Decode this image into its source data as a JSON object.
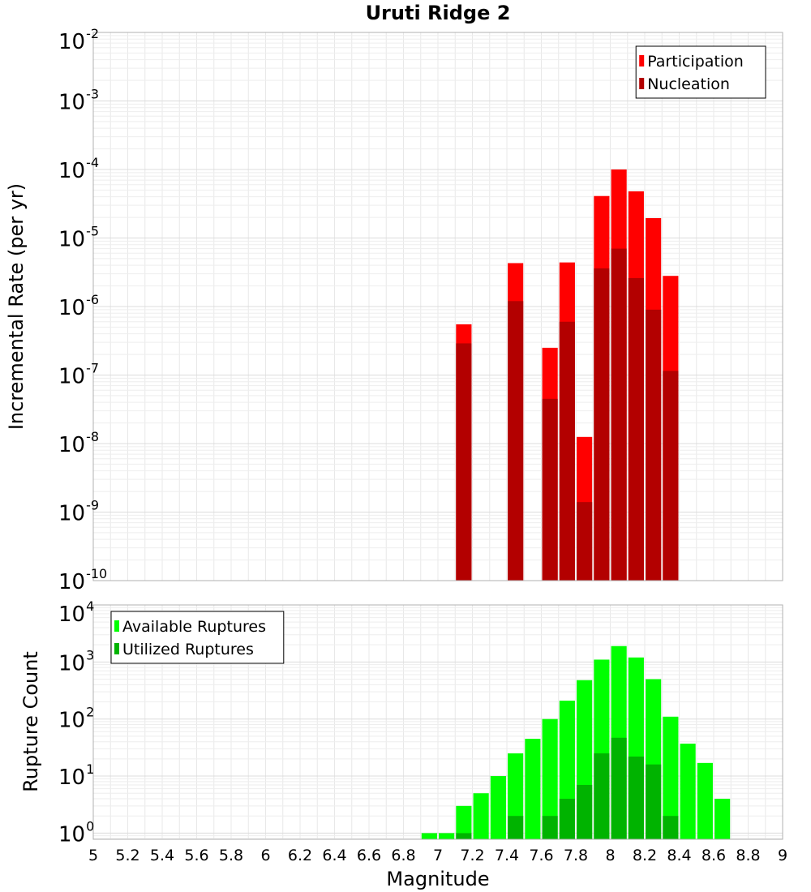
{
  "chart_data": [
    {
      "type": "bar",
      "title": "Uruti Ridge 2",
      "xlabel": "",
      "ylabel": "Incremental Rate (per yr)",
      "yscale": "log",
      "ylim": [
        1e-10,
        0.01
      ],
      "xlim": [
        5,
        9
      ],
      "grid": true,
      "legend_placement": "top-right",
      "yticks": [
        {
          "base": "10",
          "exp": "-10"
        },
        {
          "base": "10",
          "exp": "-9"
        },
        {
          "base": "10",
          "exp": "-8"
        },
        {
          "base": "10",
          "exp": "-7"
        },
        {
          "base": "10",
          "exp": "-6"
        },
        {
          "base": "10",
          "exp": "-5"
        },
        {
          "base": "10",
          "exp": "-4"
        },
        {
          "base": "10",
          "exp": "-3"
        },
        {
          "base": "10",
          "exp": "-2"
        }
      ],
      "series": [
        {
          "name": "Participation",
          "color": "#ff0000",
          "x": [
            7.15,
            7.45,
            7.65,
            7.75,
            7.85,
            7.95,
            8.05,
            8.15,
            8.25,
            8.35
          ],
          "values": [
            5.5e-07,
            4.3e-06,
            2.5e-07,
            4.4e-06,
            1.25e-08,
            4.1e-05,
            0.0001,
            4.8e-05,
            1.95e-05,
            2.8e-06
          ]
        },
        {
          "name": "Nucleation",
          "color": "#b30000",
          "x": [
            7.15,
            7.45,
            7.65,
            7.75,
            7.85,
            7.95,
            8.05,
            8.15,
            8.25,
            8.35
          ],
          "values": [
            2.9e-07,
            1.2e-06,
            4.5e-08,
            6e-07,
            1.4e-09,
            3.6e-06,
            7e-06,
            2.6e-06,
            9e-07,
            1.15e-07
          ]
        }
      ]
    },
    {
      "type": "bar",
      "title": "",
      "xlabel": "Magnitude",
      "ylabel": "Rupture Count",
      "yscale": "log",
      "ylim": [
        0.78,
        10000
      ],
      "xlim": [
        5,
        9
      ],
      "grid": true,
      "legend_placement": "top-left",
      "xticks": [
        "5",
        "5.2",
        "5.4",
        "5.6",
        "5.8",
        "6",
        "6.2",
        "6.4",
        "6.6",
        "6.8",
        "7",
        "7.2",
        "7.4",
        "7.6",
        "7.8",
        "8",
        "8.2",
        "8.4",
        "8.6",
        "8.8",
        "9"
      ],
      "yticks": [
        {
          "base": "10",
          "exp": "0"
        },
        {
          "base": "10",
          "exp": "1"
        },
        {
          "base": "10",
          "exp": "2"
        },
        {
          "base": "10",
          "exp": "3"
        },
        {
          "base": "10",
          "exp": "4"
        }
      ],
      "series": [
        {
          "name": "Available Ruptures",
          "color": "#00ff00",
          "x": [
            6.95,
            7.05,
            7.15,
            7.25,
            7.35,
            7.45,
            7.55,
            7.65,
            7.75,
            7.85,
            7.95,
            8.05,
            8.15,
            8.25,
            8.35,
            8.45,
            8.55,
            8.65
          ],
          "values": [
            1,
            1,
            3,
            5,
            10,
            25,
            45,
            100,
            210,
            480,
            1100,
            1900,
            1200,
            500,
            110,
            37,
            17,
            4
          ]
        },
        {
          "name": "Utilized Ruptures",
          "color": "#00b300",
          "x": [
            7.15,
            7.45,
            7.65,
            7.75,
            7.85,
            7.95,
            8.05,
            8.15,
            8.25,
            8.35
          ],
          "values": [
            1,
            2,
            2,
            4,
            7,
            25,
            47,
            22,
            16,
            2
          ]
        }
      ]
    }
  ]
}
